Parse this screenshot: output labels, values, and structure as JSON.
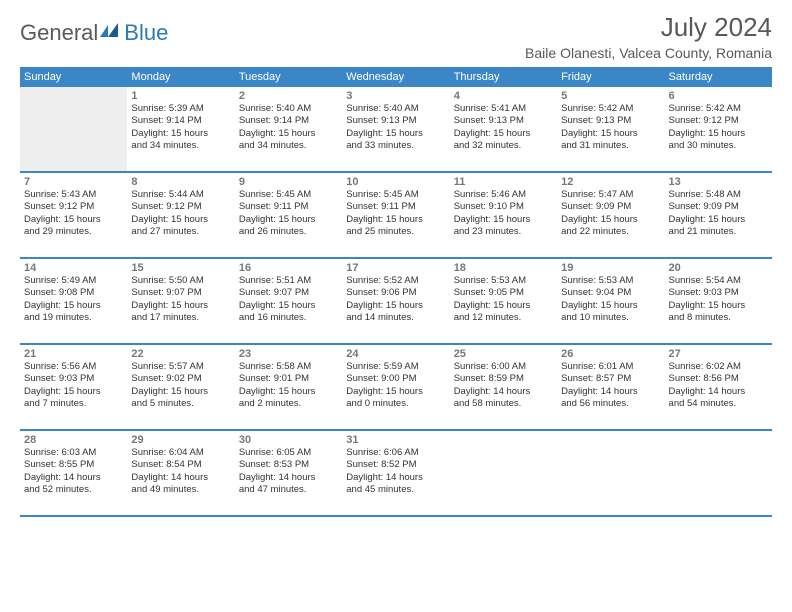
{
  "logo": {
    "general": "General",
    "blue": "Blue"
  },
  "title": "July 2024",
  "location": "Baile Olanesti, Valcea County, Romania",
  "colors": {
    "header_bg": "#3b86c6",
    "header_text": "#ffffff",
    "day_num": "#777777",
    "body_text": "#333333",
    "title_text": "#585858",
    "prev_bg": "#eeeeee",
    "border": "#3b86c6"
  },
  "weekdays": [
    "Sunday",
    "Monday",
    "Tuesday",
    "Wednesday",
    "Thursday",
    "Friday",
    "Saturday"
  ],
  "weeks": [
    [
      {
        "prev": true
      },
      {
        "n": "1",
        "sr": "Sunrise: 5:39 AM",
        "ss": "Sunset: 9:14 PM",
        "d1": "Daylight: 15 hours",
        "d2": "and 34 minutes."
      },
      {
        "n": "2",
        "sr": "Sunrise: 5:40 AM",
        "ss": "Sunset: 9:14 PM",
        "d1": "Daylight: 15 hours",
        "d2": "and 34 minutes."
      },
      {
        "n": "3",
        "sr": "Sunrise: 5:40 AM",
        "ss": "Sunset: 9:13 PM",
        "d1": "Daylight: 15 hours",
        "d2": "and 33 minutes."
      },
      {
        "n": "4",
        "sr": "Sunrise: 5:41 AM",
        "ss": "Sunset: 9:13 PM",
        "d1": "Daylight: 15 hours",
        "d2": "and 32 minutes."
      },
      {
        "n": "5",
        "sr": "Sunrise: 5:42 AM",
        "ss": "Sunset: 9:13 PM",
        "d1": "Daylight: 15 hours",
        "d2": "and 31 minutes."
      },
      {
        "n": "6",
        "sr": "Sunrise: 5:42 AM",
        "ss": "Sunset: 9:12 PM",
        "d1": "Daylight: 15 hours",
        "d2": "and 30 minutes."
      }
    ],
    [
      {
        "n": "7",
        "sr": "Sunrise: 5:43 AM",
        "ss": "Sunset: 9:12 PM",
        "d1": "Daylight: 15 hours",
        "d2": "and 29 minutes."
      },
      {
        "n": "8",
        "sr": "Sunrise: 5:44 AM",
        "ss": "Sunset: 9:12 PM",
        "d1": "Daylight: 15 hours",
        "d2": "and 27 minutes."
      },
      {
        "n": "9",
        "sr": "Sunrise: 5:45 AM",
        "ss": "Sunset: 9:11 PM",
        "d1": "Daylight: 15 hours",
        "d2": "and 26 minutes."
      },
      {
        "n": "10",
        "sr": "Sunrise: 5:45 AM",
        "ss": "Sunset: 9:11 PM",
        "d1": "Daylight: 15 hours",
        "d2": "and 25 minutes."
      },
      {
        "n": "11",
        "sr": "Sunrise: 5:46 AM",
        "ss": "Sunset: 9:10 PM",
        "d1": "Daylight: 15 hours",
        "d2": "and 23 minutes."
      },
      {
        "n": "12",
        "sr": "Sunrise: 5:47 AM",
        "ss": "Sunset: 9:09 PM",
        "d1": "Daylight: 15 hours",
        "d2": "and 22 minutes."
      },
      {
        "n": "13",
        "sr": "Sunrise: 5:48 AM",
        "ss": "Sunset: 9:09 PM",
        "d1": "Daylight: 15 hours",
        "d2": "and 21 minutes."
      }
    ],
    [
      {
        "n": "14",
        "sr": "Sunrise: 5:49 AM",
        "ss": "Sunset: 9:08 PM",
        "d1": "Daylight: 15 hours",
        "d2": "and 19 minutes."
      },
      {
        "n": "15",
        "sr": "Sunrise: 5:50 AM",
        "ss": "Sunset: 9:07 PM",
        "d1": "Daylight: 15 hours",
        "d2": "and 17 minutes."
      },
      {
        "n": "16",
        "sr": "Sunrise: 5:51 AM",
        "ss": "Sunset: 9:07 PM",
        "d1": "Daylight: 15 hours",
        "d2": "and 16 minutes."
      },
      {
        "n": "17",
        "sr": "Sunrise: 5:52 AM",
        "ss": "Sunset: 9:06 PM",
        "d1": "Daylight: 15 hours",
        "d2": "and 14 minutes."
      },
      {
        "n": "18",
        "sr": "Sunrise: 5:53 AM",
        "ss": "Sunset: 9:05 PM",
        "d1": "Daylight: 15 hours",
        "d2": "and 12 minutes."
      },
      {
        "n": "19",
        "sr": "Sunrise: 5:53 AM",
        "ss": "Sunset: 9:04 PM",
        "d1": "Daylight: 15 hours",
        "d2": "and 10 minutes."
      },
      {
        "n": "20",
        "sr": "Sunrise: 5:54 AM",
        "ss": "Sunset: 9:03 PM",
        "d1": "Daylight: 15 hours",
        "d2": "and 8 minutes."
      }
    ],
    [
      {
        "n": "21",
        "sr": "Sunrise: 5:56 AM",
        "ss": "Sunset: 9:03 PM",
        "d1": "Daylight: 15 hours",
        "d2": "and 7 minutes."
      },
      {
        "n": "22",
        "sr": "Sunrise: 5:57 AM",
        "ss": "Sunset: 9:02 PM",
        "d1": "Daylight: 15 hours",
        "d2": "and 5 minutes."
      },
      {
        "n": "23",
        "sr": "Sunrise: 5:58 AM",
        "ss": "Sunset: 9:01 PM",
        "d1": "Daylight: 15 hours",
        "d2": "and 2 minutes."
      },
      {
        "n": "24",
        "sr": "Sunrise: 5:59 AM",
        "ss": "Sunset: 9:00 PM",
        "d1": "Daylight: 15 hours",
        "d2": "and 0 minutes."
      },
      {
        "n": "25",
        "sr": "Sunrise: 6:00 AM",
        "ss": "Sunset: 8:59 PM",
        "d1": "Daylight: 14 hours",
        "d2": "and 58 minutes."
      },
      {
        "n": "26",
        "sr": "Sunrise: 6:01 AM",
        "ss": "Sunset: 8:57 PM",
        "d1": "Daylight: 14 hours",
        "d2": "and 56 minutes."
      },
      {
        "n": "27",
        "sr": "Sunrise: 6:02 AM",
        "ss": "Sunset: 8:56 PM",
        "d1": "Daylight: 14 hours",
        "d2": "and 54 minutes."
      }
    ],
    [
      {
        "n": "28",
        "sr": "Sunrise: 6:03 AM",
        "ss": "Sunset: 8:55 PM",
        "d1": "Daylight: 14 hours",
        "d2": "and 52 minutes."
      },
      {
        "n": "29",
        "sr": "Sunrise: 6:04 AM",
        "ss": "Sunset: 8:54 PM",
        "d1": "Daylight: 14 hours",
        "d2": "and 49 minutes."
      },
      {
        "n": "30",
        "sr": "Sunrise: 6:05 AM",
        "ss": "Sunset: 8:53 PM",
        "d1": "Daylight: 14 hours",
        "d2": "and 47 minutes."
      },
      {
        "n": "31",
        "sr": "Sunrise: 6:06 AM",
        "ss": "Sunset: 8:52 PM",
        "d1": "Daylight: 14 hours",
        "d2": "and 45 minutes."
      },
      {
        "empty": true
      },
      {
        "empty": true
      },
      {
        "empty": true
      }
    ]
  ]
}
